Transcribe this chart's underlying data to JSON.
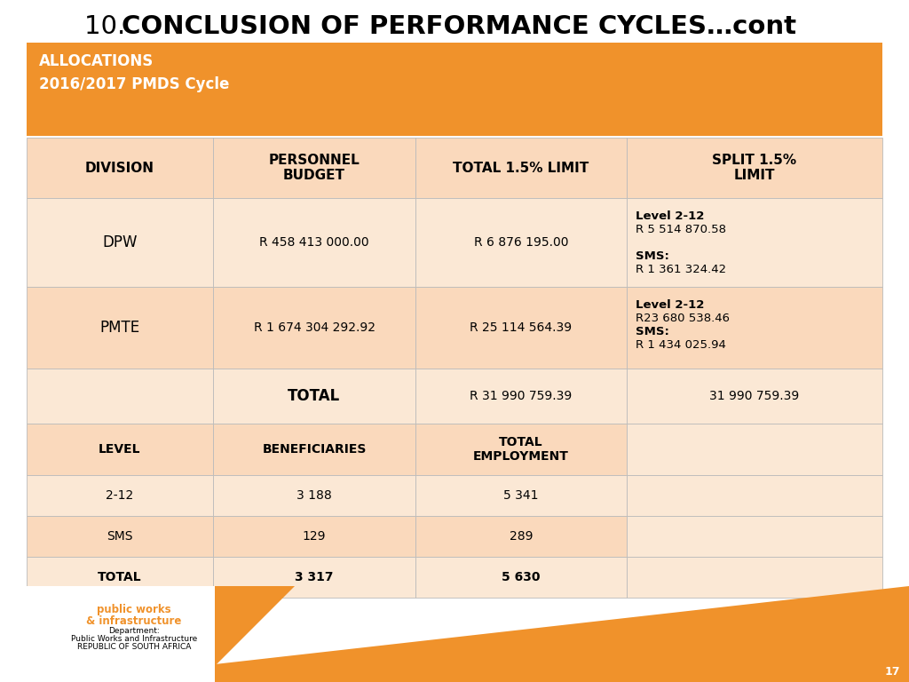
{
  "title_prefix": "10. ",
  "title_bold": "CONCLUSION OF PERFORMANCE CYCLES…cont",
  "bg_color": "#ffffff",
  "orange_header_color": "#F0922B",
  "light_orange_row1": "#FAD9BC",
  "light_orange_row2": "#FBE8D5",
  "allocations_line1": "ALLOCATIONS",
  "allocations_line2": "2016/2017 PMDS Cycle",
  "col_headers": [
    "DIVISION",
    "PERSONNEL\nBUDGET",
    "TOTAL 1.5% LIMIT",
    "SPLIT 1.5%\nLIMIT"
  ],
  "dpw_row": {
    "division": "DPW",
    "budget": "R 458 413 000.00",
    "total_limit": "R 6 876 195.00"
  },
  "dpw_split": [
    [
      "Level 2-12",
      true
    ],
    [
      "R 5 514 870.58",
      false
    ],
    [
      "",
      false
    ],
    [
      "SMS:",
      true
    ],
    [
      "R 1 361 324.42",
      false
    ]
  ],
  "pmte_row": {
    "division": "PMTE",
    "budget": "R 1 674 304 292.92",
    "total_limit": "R 25 114 564.39"
  },
  "pmte_split": [
    [
      "Level 2-12",
      true
    ],
    [
      "R23 680 538.46",
      false
    ],
    [
      "SMS:",
      true
    ],
    [
      "R 1 434 025.94",
      false
    ]
  ],
  "total_row": {
    "label": "TOTAL",
    "total_limit": "R 31 990 759.39",
    "split_limit": "31 990 759.39"
  },
  "sub_headers": [
    "LEVEL",
    "BENEFICIARIES",
    "TOTAL\nEMPLOYMENT"
  ],
  "sub_rows": [
    [
      "2-12",
      "3 188",
      "5 341"
    ],
    [
      "SMS",
      "129",
      "289"
    ],
    [
      "TOTAL",
      "3 317",
      "5 630"
    ]
  ],
  "footer_orange_color": "#F0922B",
  "page_number": "17"
}
